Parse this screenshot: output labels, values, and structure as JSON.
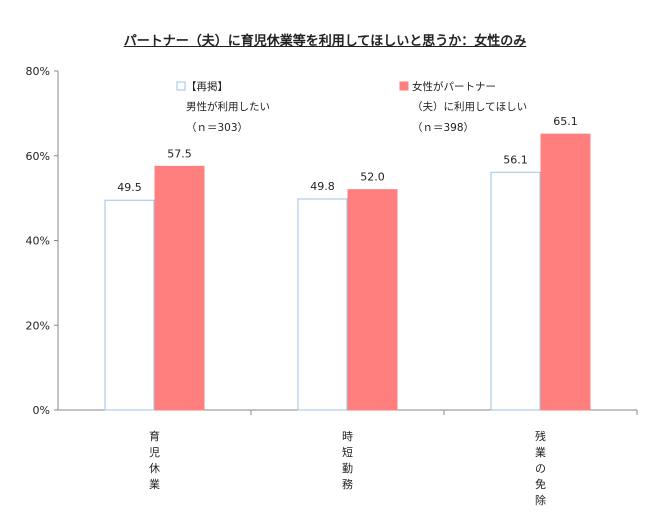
{
  "chart_data": {
    "type": "bar",
    "title": "パートナー（夫）に育児休業等を利用してほしいと思うか：女性のみ",
    "categories": [
      "育児休業",
      "時短勤務",
      "残業の免除"
    ],
    "series": [
      {
        "name": "【再掲】男性が利用したい",
        "sample": "（ｎ＝303）",
        "color": "#ffffff",
        "stroke": "#9dc3e6",
        "values": [
          49.5,
          49.8,
          56.1
        ],
        "labels": [
          "49.5",
          "49.8",
          "56.1"
        ]
      },
      {
        "name": "女性がパートナー（夫）に利用してほしい",
        "sample": "（ｎ＝398）",
        "color": "#ff7f7f",
        "stroke": "#ff7f7f",
        "values": [
          57.5,
          52.0,
          65.1
        ],
        "labels": [
          "57.5",
          "52.0",
          "65.1"
        ]
      }
    ],
    "legend": {
      "s1_lines": [
        "【再掲】",
        "男性が利用したい",
        "（ｎ＝303）"
      ],
      "s2_lines": [
        "女性がパートナー",
        "（夫）に利用してほしい",
        "（ｎ＝398）"
      ]
    },
    "ylim": [
      0,
      80
    ],
    "yticks": [
      "0%",
      "20%",
      "40%",
      "60%",
      "80%"
    ],
    "ytick_values": [
      0,
      20,
      40,
      60,
      80
    ],
    "grid": false,
    "legend_position": "top-left"
  }
}
